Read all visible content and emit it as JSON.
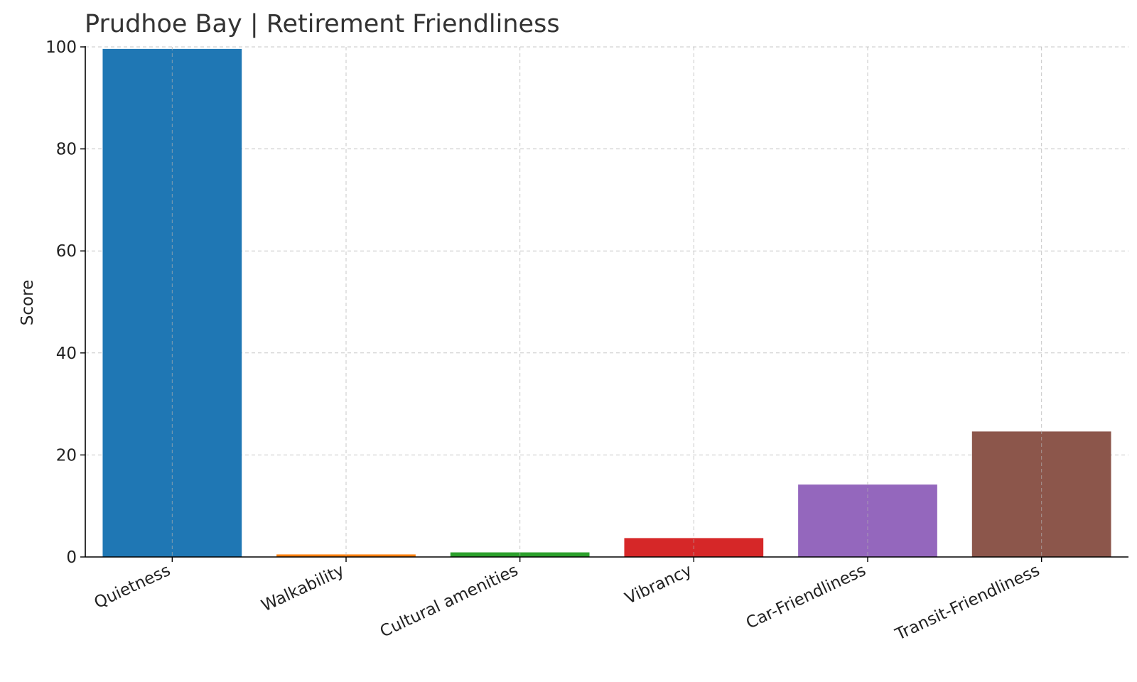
{
  "chart_data": {
    "type": "bar",
    "title": "Prudhoe Bay | Retirement Friendliness",
    "xlabel": "",
    "ylabel": "Score",
    "ylim": [
      0,
      100
    ],
    "yticks": [
      0,
      20,
      40,
      60,
      80,
      100
    ],
    "grid": true,
    "categories": [
      "Quietness",
      "Walkability",
      "Cultural amenities",
      "Vibrancy",
      "Car-Friendliness",
      "Transit-Friendliness"
    ],
    "values": [
      99.6,
      0.5,
      0.9,
      3.7,
      14.2,
      24.6
    ],
    "colors": [
      "#1f77b4",
      "#ff7f0e",
      "#2ca02c",
      "#d62728",
      "#9467bd",
      "#8c564b"
    ]
  }
}
